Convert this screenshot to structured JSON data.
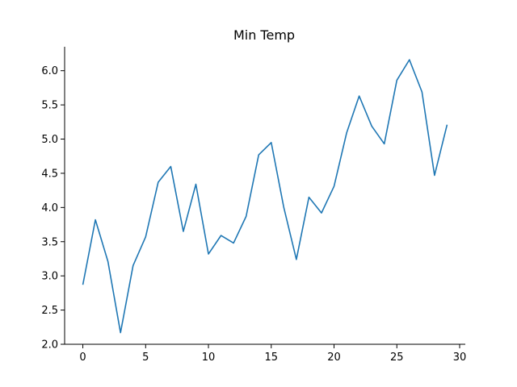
{
  "chart_data": {
    "type": "line",
    "title": "Min Temp",
    "xlabel": "",
    "ylabel": "",
    "xlim": [
      -1.45,
      30.45
    ],
    "ylim": [
      2.0,
      6.35
    ],
    "xticks": [
      0,
      5,
      10,
      15,
      20,
      25,
      30
    ],
    "xtick_labels": [
      "0",
      "5",
      "10",
      "15",
      "20",
      "25",
      "30"
    ],
    "yticks": [
      2.0,
      2.5,
      3.0,
      3.5,
      4.0,
      4.5,
      5.0,
      5.5,
      6.0
    ],
    "ytick_labels": [
      "2.0",
      "2.5",
      "3.0",
      "3.5",
      "4.0",
      "4.5",
      "5.0",
      "5.5",
      "6.0"
    ],
    "grid": false,
    "line_color": "#1f77b4",
    "series": [
      {
        "x": [
          0,
          1,
          2,
          3,
          4,
          5,
          6,
          7,
          8,
          9,
          10,
          11,
          12,
          13,
          14,
          15,
          16,
          17,
          18,
          19,
          20,
          21,
          22,
          23,
          24,
          25,
          26,
          27,
          28,
          29
        ],
        "values": [
          2.87,
          3.82,
          3.21,
          2.17,
          3.15,
          3.57,
          4.37,
          4.6,
          3.65,
          4.34,
          3.32,
          3.59,
          3.48,
          3.87,
          4.77,
          4.95,
          4.0,
          3.24,
          4.15,
          3.92,
          4.31,
          5.09,
          5.63,
          5.19,
          4.93,
          5.86,
          6.16,
          5.69,
          4.47,
          5.21
        ]
      }
    ]
  }
}
